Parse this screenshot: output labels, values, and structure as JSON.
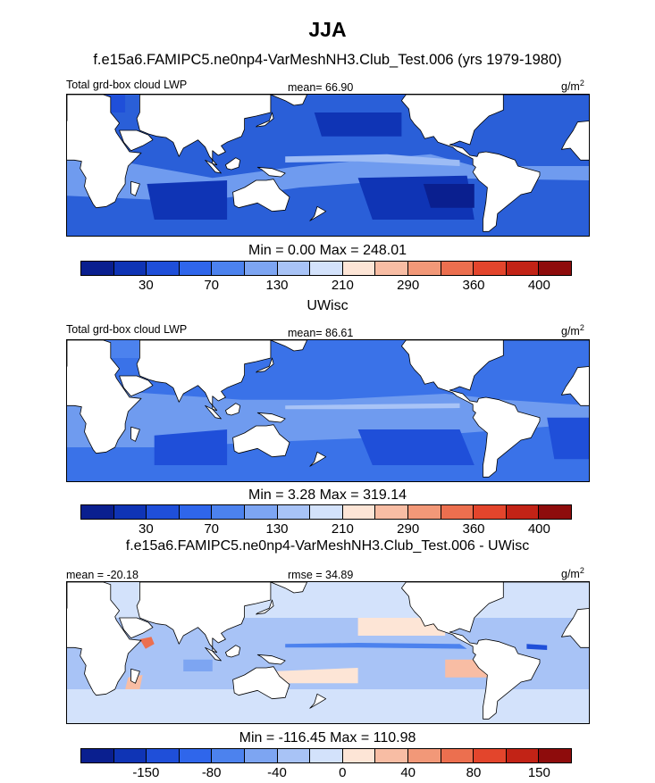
{
  "title": "JJA",
  "subtitle": "f.e15a6.FAMIPC5.ne0np4-VarMeshNH3.Club_Test.006 (yrs 1979-1980)",
  "colors": [
    "#0a1f8f",
    "#0f34b5",
    "#1f4fd9",
    "#2f66eb",
    "#4c82ee",
    "#7da5f2",
    "#a8c3f6",
    "#d3e2fb",
    "#fde5d6",
    "#f8bda4",
    "#f29878",
    "#ec6f4f",
    "#e3452c",
    "#c22316",
    "#8e0c0c"
  ],
  "panels": [
    {
      "id": "p1",
      "title": "",
      "left_label": "Total grd-box cloud LWP",
      "center_label": "mean=  66.90",
      "units": "g/m",
      "units_sup": "2",
      "minmax": "Min =   0.00 Max = 248.01",
      "ticks": [
        "30",
        "70",
        "130",
        "210",
        "290",
        "360",
        "400"
      ],
      "scheme": "lwp1"
    },
    {
      "id": "p2",
      "title": "UWisc",
      "left_label": "Total grd-box cloud LWP",
      "center_label": "mean=  86.61",
      "units": "g/m",
      "units_sup": "2",
      "minmax": "Min =   3.28 Max = 319.14",
      "ticks": [
        "30",
        "70",
        "130",
        "210",
        "290",
        "360",
        "400"
      ],
      "scheme": "lwp2"
    },
    {
      "id": "p3",
      "title": "f.e15a6.FAMIPC5.ne0np4-VarMeshNH3.Club_Test.006 - UWisc",
      "left_label": "mean = -20.18",
      "center_label": "rmse =  34.89",
      "units": "g/m",
      "units_sup": "2",
      "minmax": "Min = -116.45 Max = 110.98",
      "ticks": [
        "-150",
        "-80",
        "-40",
        "0",
        "40",
        "80",
        "150"
      ],
      "scheme": "diff"
    }
  ]
}
